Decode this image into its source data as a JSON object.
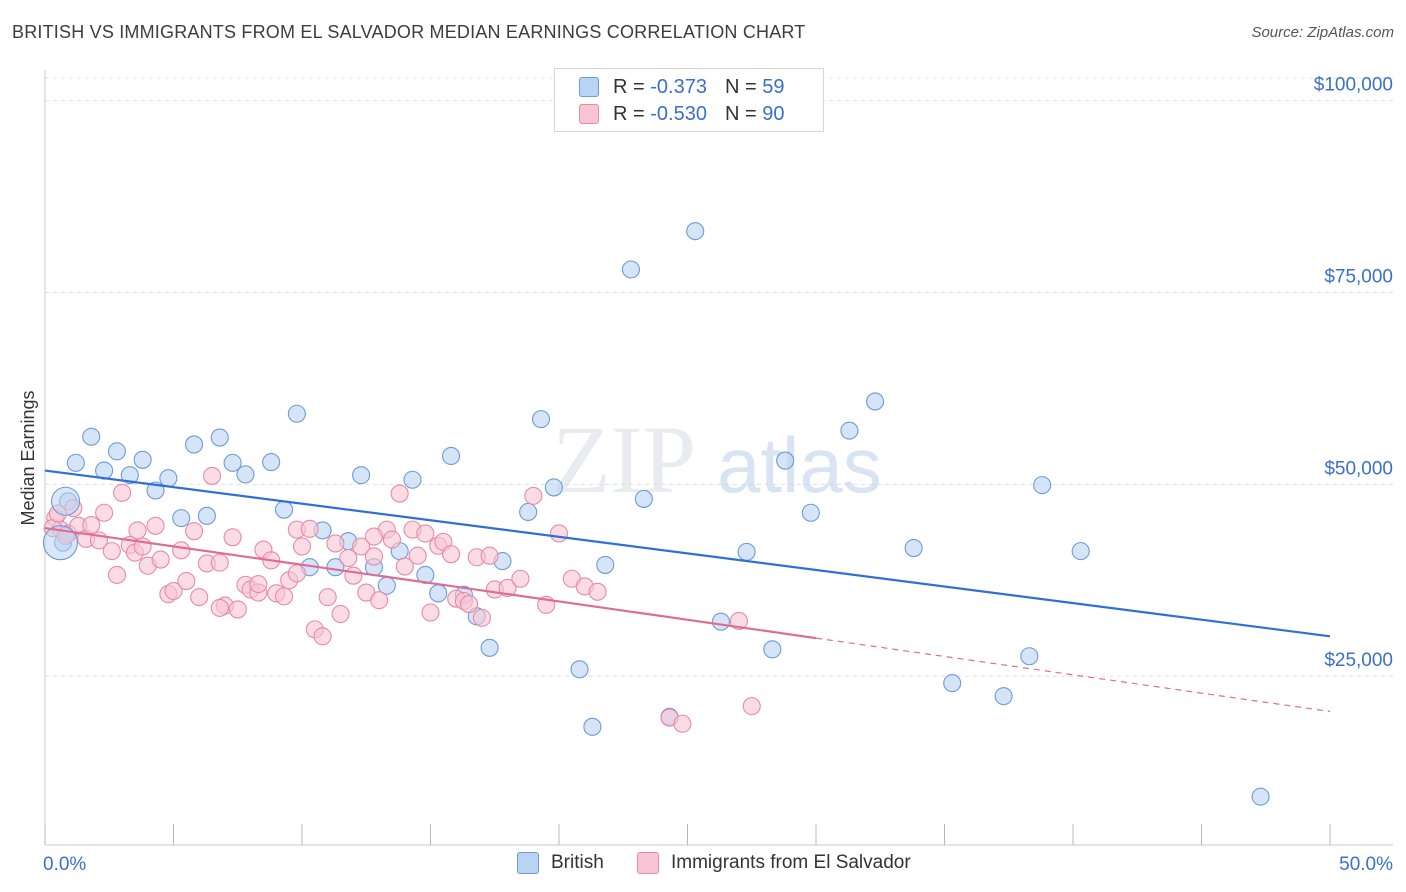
{
  "title": "BRITISH VS IMMIGRANTS FROM EL SALVADOR MEDIAN EARNINGS CORRELATION CHART",
  "source": "Source: ZipAtlas.com",
  "watermark": {
    "zip": "ZIP",
    "atlas": "atlas"
  },
  "legend_top": {
    "r_label": "R =",
    "n_label": "N =",
    "british": {
      "r": "-0.373",
      "n": "59"
    },
    "salvador": {
      "r": "-0.530",
      "n": "90"
    }
  },
  "colors": {
    "british_fill": "#b9d3f2",
    "british_stroke": "#6c9bd8",
    "british_line": "#2f6fd6",
    "salvador_fill": "#f8c5d4",
    "salvador_stroke": "#e88aa7",
    "salvador_line": "#e06c93",
    "axis_label": "#3a6fd0",
    "grid": "#e0e0e0"
  },
  "chart_data": {
    "type": "scatter",
    "title": "BRITISH VS IMMIGRANTS FROM EL SALVADOR MEDIAN EARNINGS CORRELATION CHART",
    "xlabel": "",
    "ylabel": "Median Earnings",
    "xlim": [
      0,
      50
    ],
    "ylim": [
      3000,
      104000
    ],
    "x_tick_labels": [
      "0.0%",
      "50.0%"
    ],
    "y_ticks": [
      25000,
      50000,
      75000,
      100000
    ],
    "y_tick_labels": [
      "$25,000",
      "$50,000",
      "$75,000",
      "$100,000"
    ],
    "grid": true,
    "legend_position": "bottom",
    "series": [
      {
        "name": "British",
        "points": [
          [
            0.9,
            47800
          ],
          [
            0.7,
            42400
          ],
          [
            1.2,
            52800
          ],
          [
            1.8,
            56200
          ],
          [
            2.3,
            51800
          ],
          [
            2.8,
            54300
          ],
          [
            3.3,
            51200
          ],
          [
            3.8,
            53200
          ],
          [
            4.3,
            49200
          ],
          [
            4.8,
            50800
          ],
          [
            5.3,
            45600
          ],
          [
            5.8,
            55200
          ],
          [
            6.3,
            45900
          ],
          [
            6.8,
            56100
          ],
          [
            7.3,
            52800
          ],
          [
            7.8,
            51300
          ],
          [
            8.8,
            52900
          ],
          [
            9.3,
            46700
          ],
          [
            9.8,
            59200
          ],
          [
            10.3,
            39200
          ],
          [
            10.8,
            44000
          ],
          [
            11.3,
            39200
          ],
          [
            11.8,
            42600
          ],
          [
            12.3,
            51200
          ],
          [
            12.8,
            39200
          ],
          [
            13.3,
            36800
          ],
          [
            13.8,
            41300
          ],
          [
            14.3,
            50600
          ],
          [
            14.8,
            38200
          ],
          [
            15.3,
            35800
          ],
          [
            15.8,
            53700
          ],
          [
            16.3,
            35600
          ],
          [
            16.8,
            32800
          ],
          [
            17.3,
            28700
          ],
          [
            17.8,
            40000
          ],
          [
            18.8,
            46400
          ],
          [
            19.3,
            58500
          ],
          [
            19.8,
            49600
          ],
          [
            20.8,
            25900
          ],
          [
            21.3,
            18400
          ],
          [
            21.8,
            39500
          ],
          [
            22.8,
            78000
          ],
          [
            23.3,
            48100
          ],
          [
            24.3,
            19700
          ],
          [
            25.3,
            83000
          ],
          [
            26.3,
            32100
          ],
          [
            27.3,
            41200
          ],
          [
            28.3,
            28500
          ],
          [
            28.8,
            53100
          ],
          [
            29.8,
            46300
          ],
          [
            31.3,
            57000
          ],
          [
            32.3,
            60800
          ],
          [
            33.8,
            41700
          ],
          [
            35.3,
            24100
          ],
          [
            37.3,
            22400
          ],
          [
            38.3,
            27600
          ],
          [
            38.8,
            49900
          ],
          [
            40.3,
            41300
          ],
          [
            47.3,
            9300
          ]
        ]
      },
      {
        "name": "Immigrants from El Salvador",
        "points": [
          [
            0.4,
            45600
          ],
          [
            0.6,
            44100
          ],
          [
            0.9,
            43600
          ],
          [
            1.1,
            46900
          ],
          [
            1.3,
            44600
          ],
          [
            1.6,
            42900
          ],
          [
            1.8,
            44700
          ],
          [
            2.1,
            42700
          ],
          [
            2.3,
            46300
          ],
          [
            2.6,
            41300
          ],
          [
            2.8,
            38200
          ],
          [
            3.0,
            48900
          ],
          [
            3.3,
            42100
          ],
          [
            3.5,
            41100
          ],
          [
            3.8,
            41900
          ],
          [
            4.0,
            39400
          ],
          [
            4.3,
            44600
          ],
          [
            4.5,
            40200
          ],
          [
            4.8,
            35700
          ],
          [
            5.0,
            36100
          ],
          [
            5.3,
            41400
          ],
          [
            5.5,
            37400
          ],
          [
            5.8,
            43900
          ],
          [
            6.0,
            35300
          ],
          [
            6.3,
            39700
          ],
          [
            6.5,
            51100
          ],
          [
            6.8,
            39800
          ],
          [
            7.0,
            34200
          ],
          [
            7.3,
            43100
          ],
          [
            7.5,
            33700
          ],
          [
            7.8,
            36900
          ],
          [
            8.0,
            36300
          ],
          [
            8.3,
            35900
          ],
          [
            8.5,
            41500
          ],
          [
            8.8,
            40100
          ],
          [
            9.0,
            35800
          ],
          [
            9.3,
            35400
          ],
          [
            9.5,
            37500
          ],
          [
            9.8,
            44100
          ],
          [
            10.0,
            41900
          ],
          [
            10.3,
            44200
          ],
          [
            10.5,
            31100
          ],
          [
            10.8,
            30200
          ],
          [
            11.0,
            35300
          ],
          [
            11.3,
            42300
          ],
          [
            11.5,
            33100
          ],
          [
            11.8,
            40400
          ],
          [
            12.0,
            38100
          ],
          [
            12.3,
            41900
          ],
          [
            12.5,
            35900
          ],
          [
            12.8,
            40600
          ],
          [
            13.0,
            34900
          ],
          [
            13.3,
            44100
          ],
          [
            13.5,
            42800
          ],
          [
            13.8,
            48800
          ],
          [
            14.0,
            39300
          ],
          [
            14.3,
            44100
          ],
          [
            14.5,
            40700
          ],
          [
            14.8,
            43600
          ],
          [
            15.0,
            33300
          ],
          [
            15.3,
            42000
          ],
          [
            15.5,
            42500
          ],
          [
            15.8,
            40900
          ],
          [
            16.0,
            35100
          ],
          [
            16.3,
            34800
          ],
          [
            16.5,
            34400
          ],
          [
            16.8,
            40500
          ],
          [
            17.0,
            32600
          ],
          [
            17.3,
            40700
          ],
          [
            17.5,
            36300
          ],
          [
            18.0,
            36500
          ],
          [
            18.5,
            37700
          ],
          [
            19.0,
            48500
          ],
          [
            19.5,
            34300
          ],
          [
            20.0,
            43600
          ],
          [
            20.5,
            37700
          ],
          [
            21.0,
            36700
          ],
          [
            21.5,
            36000
          ],
          [
            24.3,
            19600
          ],
          [
            24.8,
            18800
          ],
          [
            27.0,
            32200
          ],
          [
            27.5,
            21100
          ],
          [
            0.3,
            44300
          ],
          [
            0.5,
            46200
          ],
          [
            0.8,
            43300
          ],
          [
            3.6,
            44000
          ],
          [
            6.8,
            33900
          ],
          [
            8.3,
            37000
          ],
          [
            9.8,
            38400
          ],
          [
            12.8,
            43200
          ]
        ]
      }
    ],
    "trend_lines": [
      {
        "name": "British",
        "x": [
          0,
          50
        ],
        "y": [
          51800,
          30200
        ],
        "dashed_from": null
      },
      {
        "name": "Immigrants from El Salvador",
        "x": [
          0,
          50
        ],
        "y": [
          44300,
          20400
        ],
        "dashed_from": 30
      }
    ]
  }
}
